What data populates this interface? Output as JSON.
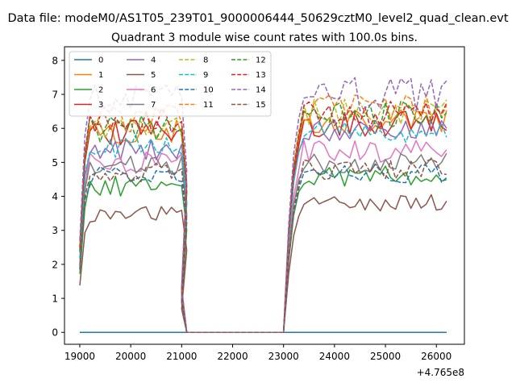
{
  "header": {
    "file_title": "Data file: modeM0/AS1T05_239T01_9000006444_50629cztM0_level2_quad_clean.evt"
  },
  "chart_data": {
    "type": "line",
    "title": "Quadrant 3 module wise count rates with 100.0s bins.",
    "xlabel": "",
    "ylabel": "",
    "x_offset_label": "+4.765e8",
    "xlim": [
      18700,
      26550
    ],
    "ylim": [
      -0.35,
      8.4
    ],
    "x_ticks": [
      19000,
      20000,
      21000,
      22000,
      23000,
      24000,
      25000,
      26000
    ],
    "x_tick_labels": [
      "19000",
      "20000",
      "21000",
      "22000",
      "23000",
      "24000",
      "25000",
      "26000"
    ],
    "y_ticks": [
      0,
      1,
      2,
      3,
      4,
      5,
      6,
      7,
      8
    ],
    "y_tick_labels": [
      "0",
      "1",
      "2",
      "3",
      "4",
      "5",
      "6",
      "7",
      "8"
    ],
    "grid": false,
    "legend_position": "top-left",
    "x_segments": [
      {
        "start": 19000,
        "count": 22
      },
      {
        "start": 23000,
        "count": 33
      }
    ],
    "series": [
      {
        "name": "0",
        "color": "#1f77b4",
        "dash": "solid",
        "base1": 0,
        "base2": 0,
        "seed": 1,
        "amp": 0
      },
      {
        "name": "1",
        "color": "#ff7f0e",
        "dash": "solid",
        "base1": 5.9,
        "base2": 6.2,
        "seed": 2,
        "amp": 0.35
      },
      {
        "name": "2",
        "color": "#2ca02c",
        "dash": "solid",
        "base1": 4.3,
        "base2": 4.6,
        "seed": 3,
        "amp": 0.3
      },
      {
        "name": "3",
        "color": "#d62728",
        "dash": "solid",
        "base1": 5.9,
        "base2": 6.1,
        "seed": 4,
        "amp": 0.4
      },
      {
        "name": "4",
        "color": "#9467bd",
        "dash": "solid",
        "base1": 5.4,
        "base2": 5.9,
        "seed": 5,
        "amp": 0.35
      },
      {
        "name": "5",
        "color": "#8c564b",
        "dash": "solid",
        "base1": 3.45,
        "base2": 3.8,
        "seed": 6,
        "amp": 0.25
      },
      {
        "name": "6",
        "color": "#e377c2",
        "dash": "solid",
        "base1": 5.0,
        "base2": 5.3,
        "seed": 7,
        "amp": 0.35
      },
      {
        "name": "7",
        "color": "#7f7f7f",
        "dash": "solid",
        "base1": 4.9,
        "base2": 5.0,
        "seed": 8,
        "amp": 0.3
      },
      {
        "name": "8",
        "color": "#bcbd22",
        "dash": "dashed",
        "base1": 6.1,
        "base2": 6.5,
        "seed": 9,
        "amp": 0.4
      },
      {
        "name": "9",
        "color": "#17becf",
        "dash": "dashed",
        "base1": 5.5,
        "base2": 5.9,
        "seed": 10,
        "amp": 0.35
      },
      {
        "name": "10",
        "color": "#1f77b4",
        "dash": "dashed",
        "base1": 4.6,
        "base2": 4.7,
        "seed": 11,
        "amp": 0.3
      },
      {
        "name": "11",
        "color": "#ff7f0e",
        "dash": "dashed",
        "base1": 6.3,
        "base2": 6.6,
        "seed": 12,
        "amp": 0.4
      },
      {
        "name": "12",
        "color": "#2ca02c",
        "dash": "dashed",
        "base1": 6.0,
        "base2": 6.4,
        "seed": 13,
        "amp": 0.4
      },
      {
        "name": "13",
        "color": "#d62728",
        "dash": "dashed",
        "base1": 6.2,
        "base2": 6.4,
        "seed": 14,
        "amp": 0.4
      },
      {
        "name": "14",
        "color": "#9467bd",
        "dash": "dashed",
        "base1": 6.8,
        "base2": 7.0,
        "seed": 15,
        "amp": 0.5
      },
      {
        "name": "15",
        "color": "#8c564b",
        "dash": "dashed",
        "base1": 4.7,
        "base2": 4.8,
        "seed": 16,
        "amp": 0.3
      }
    ]
  }
}
